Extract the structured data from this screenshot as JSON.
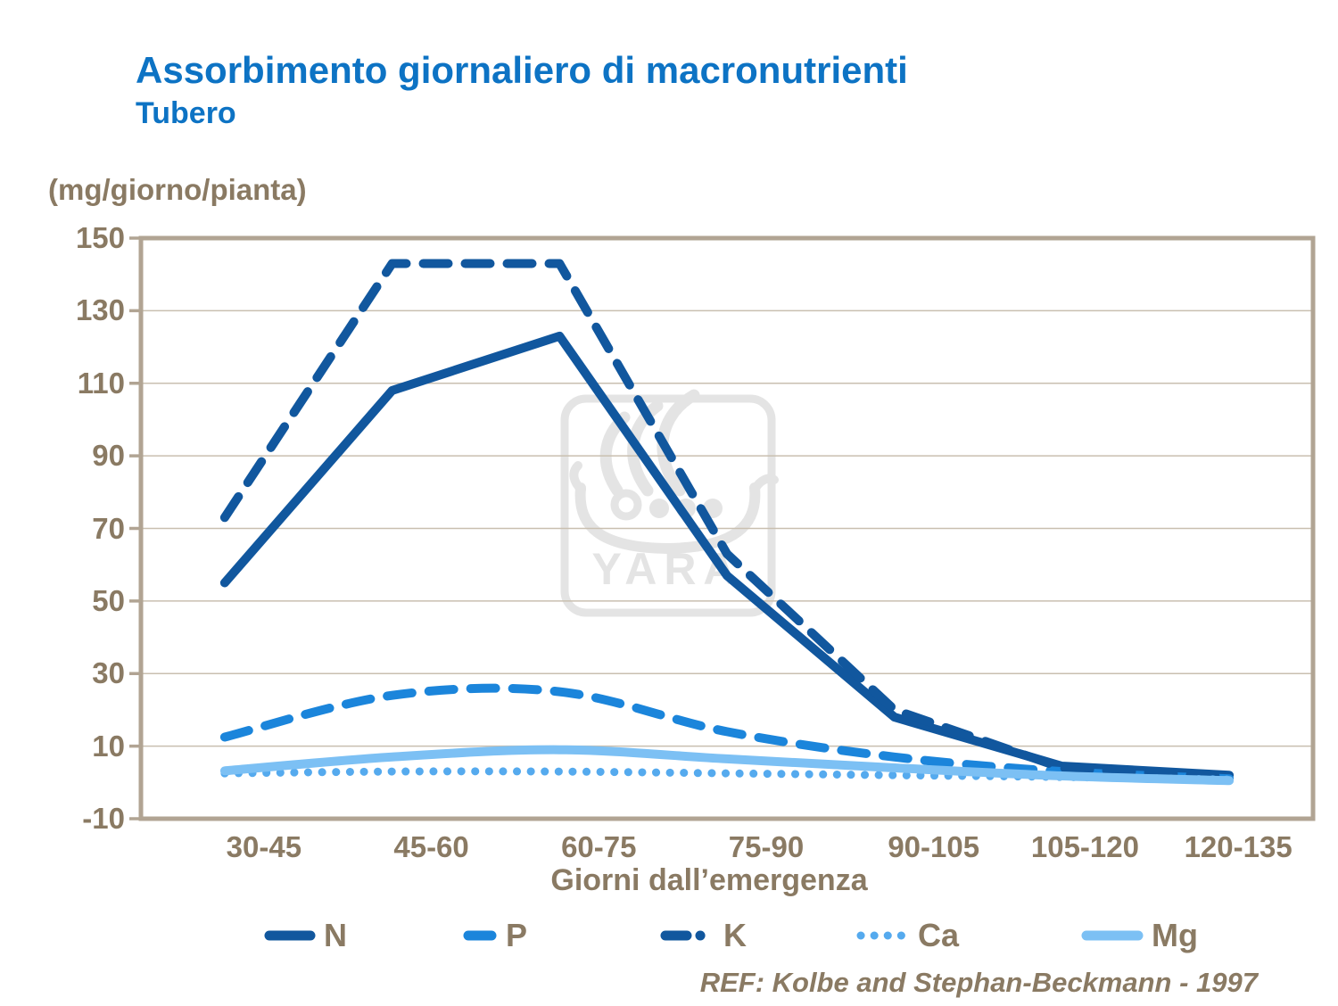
{
  "header": {
    "title": "Assorbimento giornaliero di macronutrienti",
    "subtitle": "Tubero"
  },
  "watermark": {
    "text": "YARA"
  },
  "footer_ref": "REF: Kolbe and Stephan-Beckmann - 1997",
  "colors": {
    "title_blue": "#0D73C4",
    "label_brown": "#8A7A63",
    "gridline": "#C9BFB0",
    "axis": "#B1A493",
    "watermark": "#E4E4E4",
    "dark_blue": "#11579E",
    "mid_blue": "#1B85DB",
    "light_blue_dot": "#55AAEE",
    "light_blue": "#7CC0F4"
  },
  "chart_data": {
    "type": "line",
    "title": "Assorbimento giornaliero di macronutrienti",
    "subtitle": "Tubero",
    "ylabel": "(mg/giorno/pianta)",
    "xlabel": "Giorni dall’emergenza",
    "categories": [
      "30-45",
      "45-60",
      "60-75",
      "75-90",
      "90-105",
      "105-120",
      "120-135"
    ],
    "series": [
      {
        "name": "N",
        "style": "solid",
        "smooth": false,
        "color": "#11579E",
        "values": [
          55,
          108,
          123,
          57,
          18,
          4.5,
          2
        ]
      },
      {
        "name": "P",
        "style": "dashed",
        "smooth": true,
        "color": "#1B85DB",
        "values": [
          12.5,
          24,
          25,
          14,
          7,
          3,
          1
        ]
      },
      {
        "name": "K",
        "style": "dashed",
        "smooth": false,
        "color": "#11579E",
        "values": [
          73,
          143,
          143,
          63,
          20,
          4,
          1.5
        ]
      },
      {
        "name": "Ca",
        "style": "dotted",
        "smooth": true,
        "color": "#55AAEE",
        "values": [
          2.5,
          3,
          3,
          2.5,
          2,
          1.5,
          0.8
        ]
      },
      {
        "name": "Mg",
        "style": "solid",
        "smooth": true,
        "color": "#7CC0F4",
        "values": [
          3.2,
          7,
          9,
          6.5,
          4,
          1.8,
          0.5
        ]
      }
    ],
    "ylim": [
      -10,
      150
    ],
    "y_ticks": [
      150,
      130,
      110,
      90,
      70,
      50,
      30,
      10,
      -10
    ],
    "grid": true,
    "legend_position": "bottom"
  }
}
